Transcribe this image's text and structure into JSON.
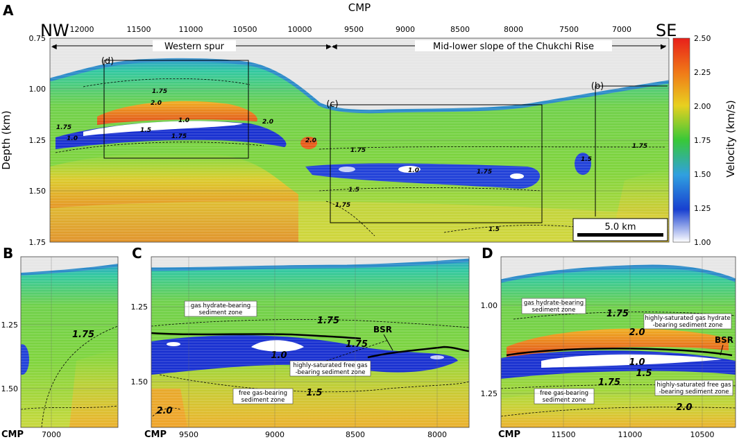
{
  "panels": {
    "A": "A",
    "B": "B",
    "C": "C",
    "D": "D"
  },
  "panel_a": {
    "x_title": "CMP",
    "x_ticks": [
      "12000",
      "11500",
      "11000",
      "10500",
      "10000",
      "9500",
      "9000",
      "8500",
      "8000",
      "7500",
      "7000"
    ],
    "y_title": "Depth (km)",
    "y_ticks": [
      "0.75",
      "1.00",
      "1.25",
      "1.50",
      "1.75"
    ],
    "corner_left": "NW",
    "corner_right": "SE",
    "region_western": "Western spur",
    "region_slope": "Mid-lower slope of the Chukchi Rise",
    "box_labels": {
      "d": "(d)",
      "c": "(c)",
      "b": "(b)"
    },
    "scale_bar": "5.0 km",
    "contours": [
      "1.75",
      "2.0",
      "1.0",
      "1.5",
      "1.75",
      "2.0",
      "2.0",
      "1.75",
      "1.0",
      "1.75",
      "1.5",
      "1.75",
      "1.5",
      "1.75",
      "1.75",
      "1.0",
      "1.5"
    ]
  },
  "colorbar": {
    "title": "Velocity (km/s)",
    "ticks": [
      "2.50",
      "2.25",
      "2.00",
      "1.75",
      "1.50",
      "1.25",
      "1.00"
    ],
    "colors": [
      "#e8201a",
      "#f07a18",
      "#e8d020",
      "#38c838",
      "#30a0e0",
      "#1840d0",
      "#ffffff"
    ]
  },
  "panel_b": {
    "y_ticks": [
      "1.25",
      "1.50"
    ],
    "cmp_label": "CMP",
    "x_ticks": [
      "7000"
    ],
    "contours": [
      "1.75"
    ]
  },
  "panel_c": {
    "y_ticks": [
      "1.25",
      "1.50"
    ],
    "cmp_label": "CMP",
    "x_ticks": [
      "9500",
      "9000",
      "8500",
      "8000"
    ],
    "annotations": {
      "hydrate": "gas hydrate-bearing\nsediment zone",
      "free_high": "highly-saturated free gas\n-bearing sediment zone",
      "free": "free gas-bearing\nsediment zone"
    },
    "bsr": "BSR",
    "contours": [
      "1.75",
      "1.75",
      "1.0",
      "1.5",
      "2.0"
    ]
  },
  "panel_d": {
    "y_ticks": [
      "1.00",
      "1.25"
    ],
    "cmp_label": "CMP",
    "x_ticks": [
      "11500",
      "11000",
      "10500"
    ],
    "annotations": {
      "hydrate": "gas hydrate-bearing\nsediment zone",
      "hydrate_high": "highly-saturated gas hydrate\n-bearing sediment zone",
      "free": "free gas-bearing\nsediment zone",
      "free_high": "highly-saturated free gas\n-bearing sediment zone"
    },
    "bsr": "BSR",
    "contours": [
      "1.75",
      "2.0",
      "1.0",
      "1.5",
      "1.75",
      "2.0"
    ]
  }
}
